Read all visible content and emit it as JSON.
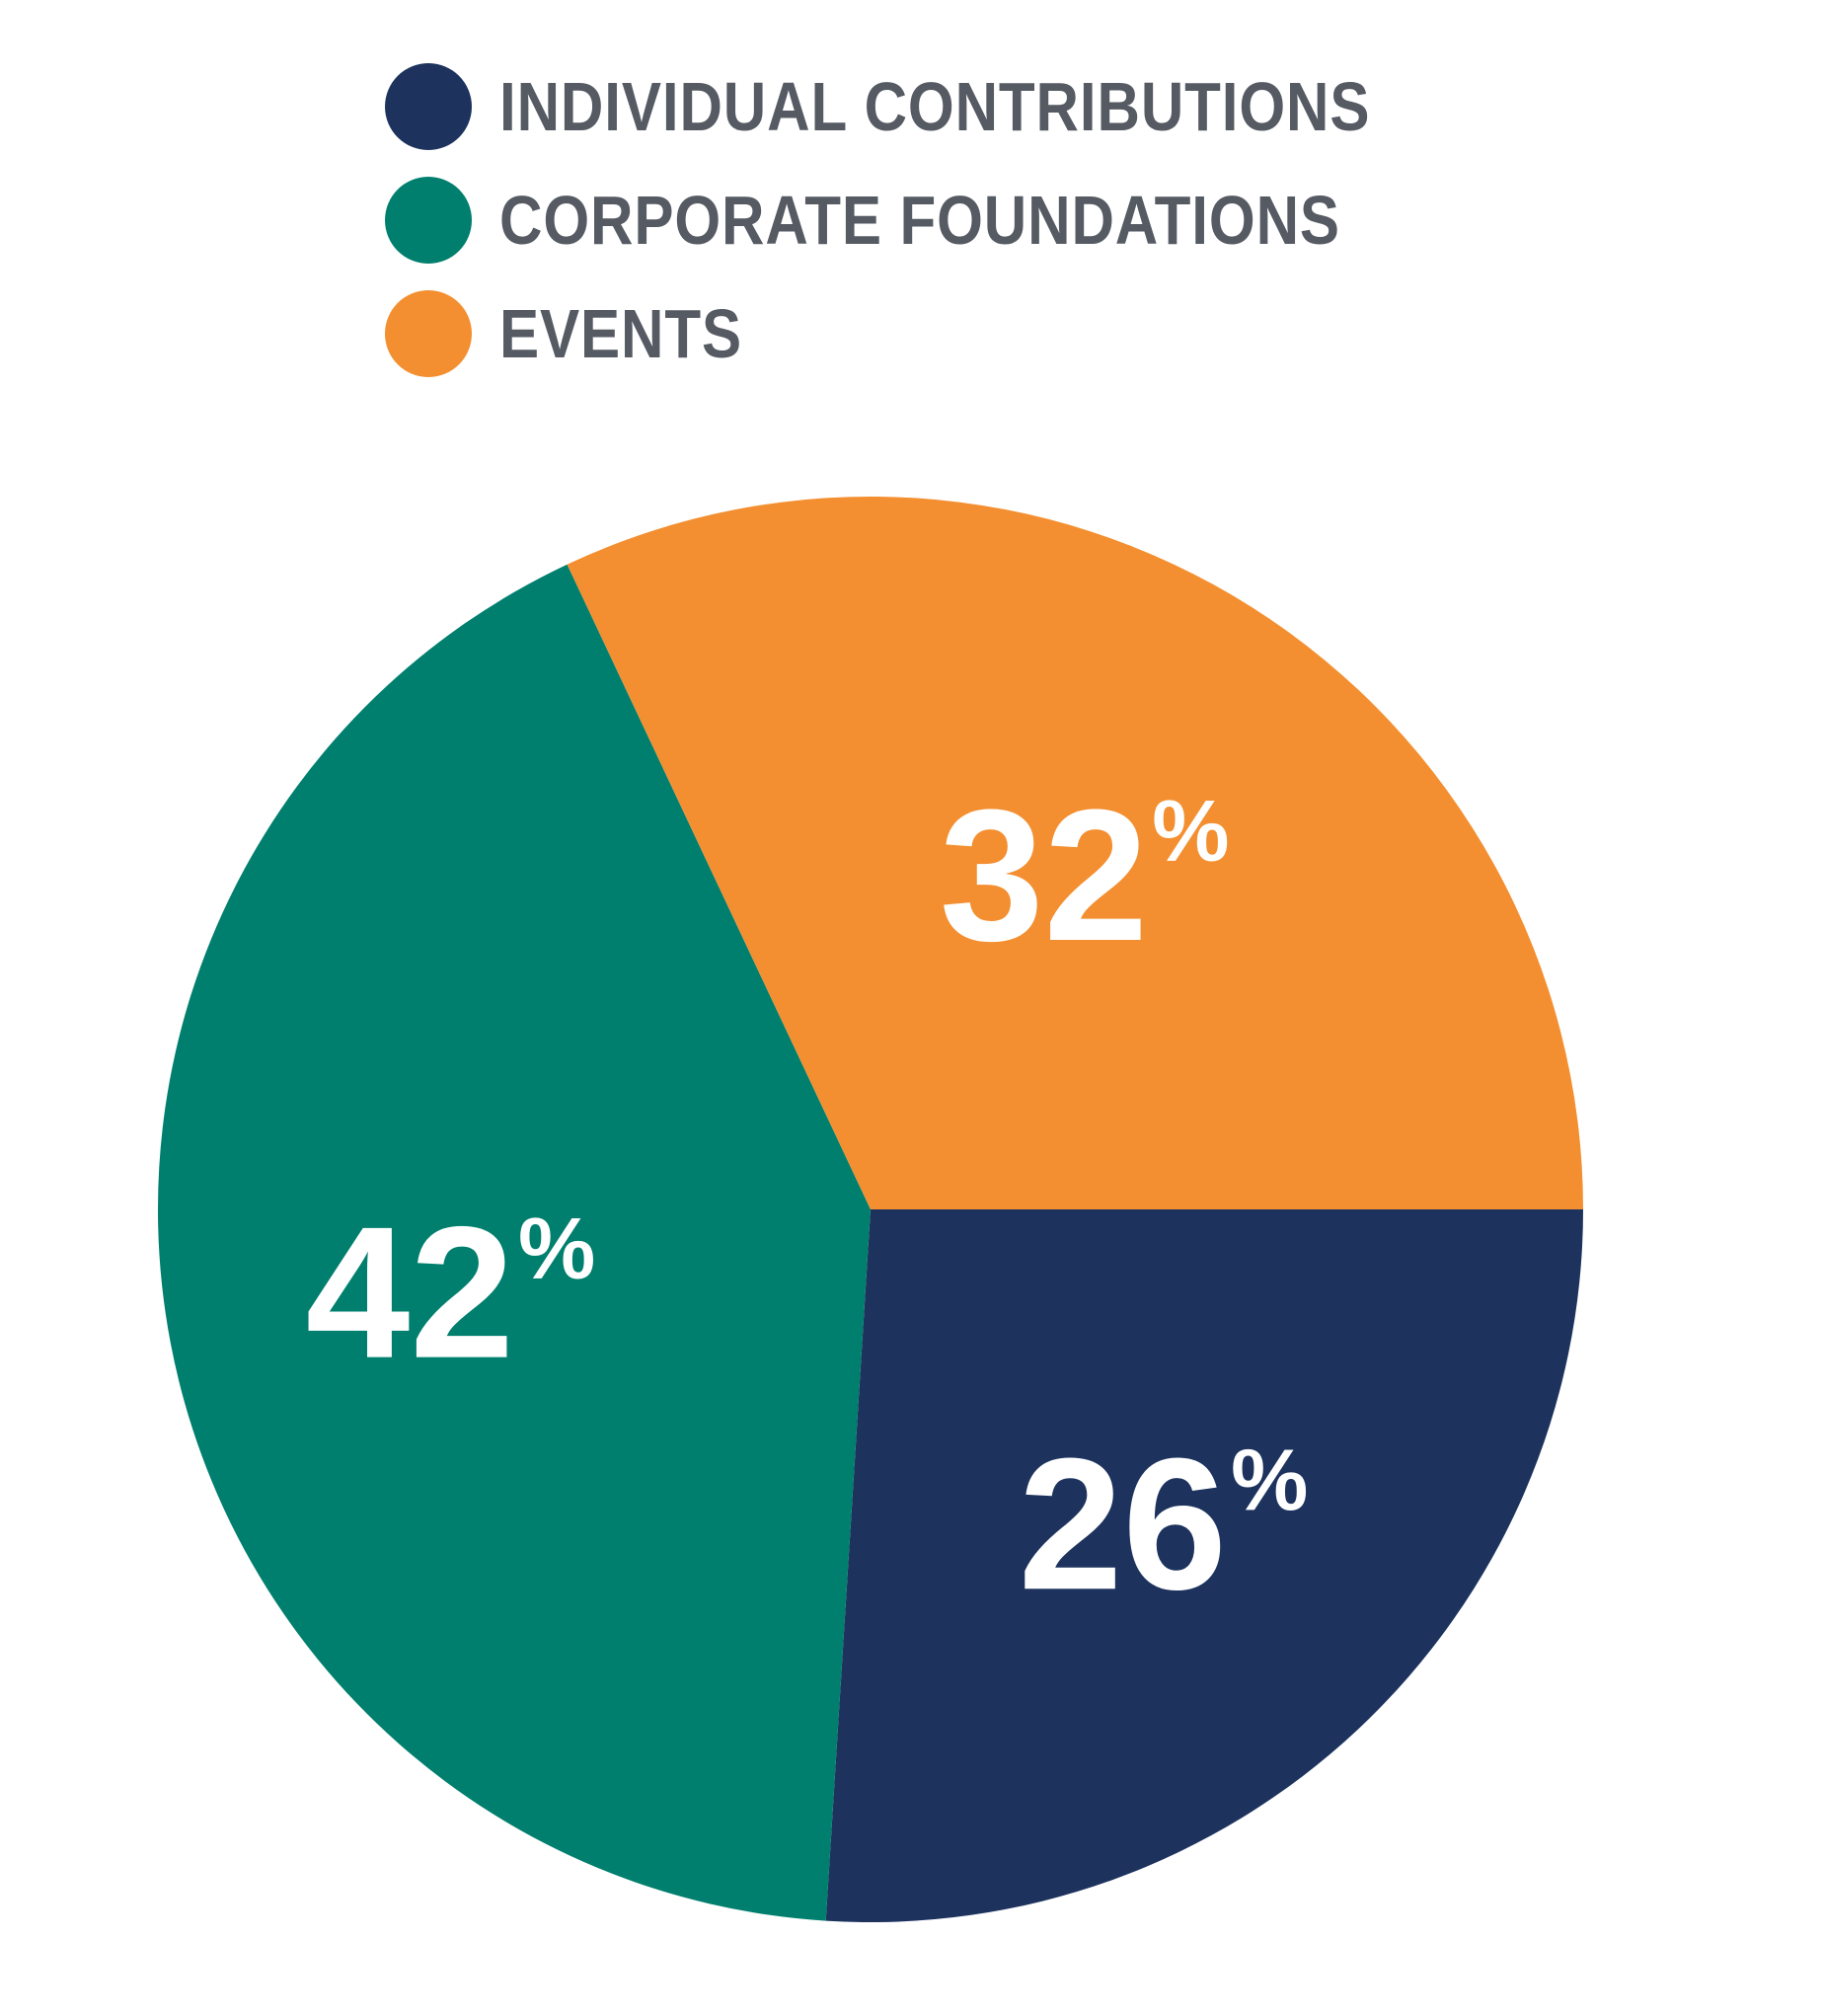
{
  "chart_data": {
    "type": "pie",
    "title": "",
    "legend_position": "top-left",
    "slices": [
      {
        "label": "INDIVIDUAL CONTRIBUTIONS",
        "value": 26,
        "display": "26%",
        "color": "#1d335e"
      },
      {
        "label": "CORPORATE FOUNDATIONS",
        "value": 42,
        "display": "42%",
        "color": "#007f6e"
      },
      {
        "label": "EVENTS",
        "value": 32,
        "display": "32%",
        "color": "#f38f30"
      }
    ]
  }
}
